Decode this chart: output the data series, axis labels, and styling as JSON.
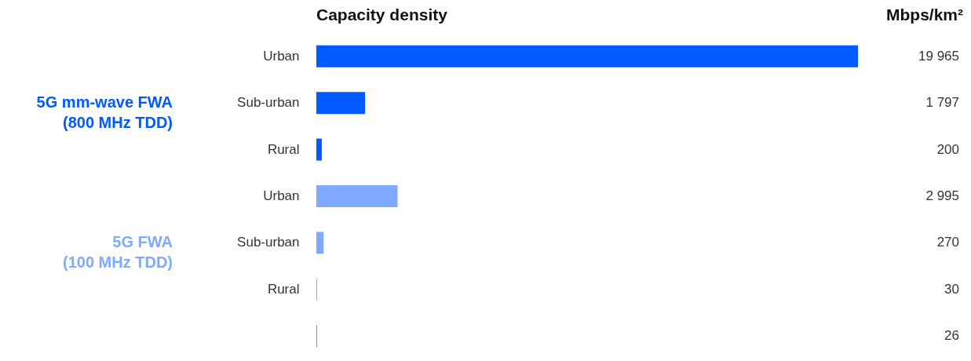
{
  "chart_data": {
    "type": "bar",
    "orientation": "horizontal",
    "title": "Capacity density",
    "xlabel": "Mbps/km²",
    "annotations": [
      "5G mm-wave FWA (800 MHz TDD)",
      "5G FWA (100 MHz TDD)"
    ],
    "categories": [
      "Urban",
      "Sub-urban",
      "Rural",
      "Urban",
      "Sub-urban",
      "Rural",
      null
    ],
    "values": [
      19965,
      1797,
      200,
      2995,
      270,
      30,
      26
    ],
    "colors": [
      "#005aff",
      "#005aff",
      "#005aff",
      "#80aaff",
      "#80aaff",
      "#80aaff",
      "#26a9a9"
    ],
    "data_labels": true,
    "grid": false
  }
}
